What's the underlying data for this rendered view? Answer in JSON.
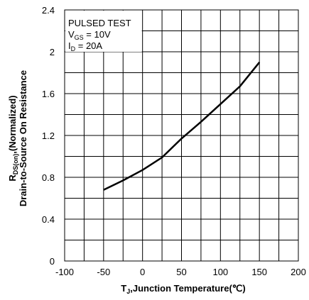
{
  "chart_data": {
    "type": "line",
    "xlabel": {
      "symbol": "T",
      "sub": "J",
      "text": ",Junction Temperature(℃)"
    },
    "ylabel": {
      "line1_symbol": "R",
      "line1_sub": "DS(on)",
      "line1_text": ",(Normalized)",
      "line2": "Drain-to-Source On Resistance"
    },
    "xlim": [
      -100,
      200
    ],
    "ylim": [
      0,
      2.4
    ],
    "x_ticks": [
      "-100",
      "-50",
      "0",
      "50",
      "100",
      "150",
      "200"
    ],
    "y_ticks": [
      "0",
      "0.4",
      "0.8",
      "1.2",
      "1.6",
      "2",
      "2.4"
    ],
    "x_tick_values": [
      -100,
      -50,
      0,
      50,
      100,
      150,
      200
    ],
    "y_tick_values": [
      0,
      0.4,
      0.8,
      1.2,
      1.6,
      2.0,
      2.4
    ],
    "x_grid_values": [
      -100,
      -75,
      -50,
      -25,
      0,
      25,
      50,
      75,
      100,
      125,
      150,
      175,
      200
    ],
    "y_grid_values": [
      0,
      0.2,
      0.4,
      0.6,
      0.8,
      1.0,
      1.2,
      1.4,
      1.6,
      1.8,
      2.0,
      2.2,
      2.4
    ],
    "grid": true,
    "series": [
      {
        "x": [
          -50,
          -25,
          0,
          25,
          50,
          75,
          100,
          125,
          150
        ],
        "y": [
          0.68,
          0.77,
          0.87,
          0.99,
          1.17,
          1.33,
          1.5,
          1.67,
          1.9
        ]
      }
    ],
    "annotation": {
      "line1": "PULSED TEST",
      "line2_symbol": "V",
      "line2_sub": "GS",
      "line2_text": " = 10V",
      "line3_symbol": "I",
      "line3_sub": "D",
      "line3_text": " = 20A"
    }
  }
}
